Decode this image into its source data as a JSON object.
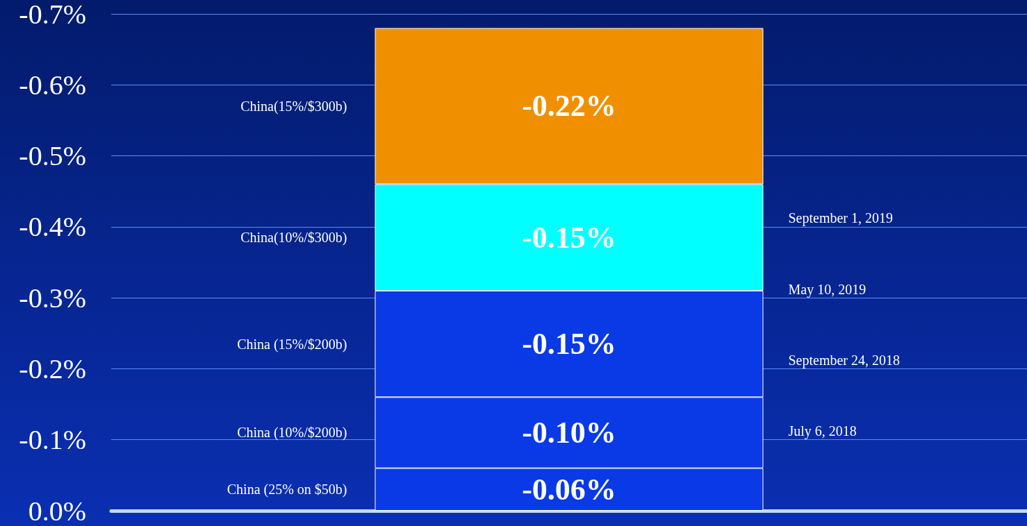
{
  "chart_data": {
    "type": "bar",
    "stacked": true,
    "categories": [
      null
    ],
    "series": [
      {
        "name": "China (25% on $50b)",
        "color": "#0a3ae6",
        "values": [
          -0.06
        ],
        "value_labels": [
          "-0.06%"
        ]
      },
      {
        "name": "China (10%/$200b)",
        "color": "#0a3ae6",
        "values": [
          -0.1
        ],
        "value_labels": [
          "-0.10%"
        ]
      },
      {
        "name": "China (15%/$200b)",
        "color": "#0a3ae6",
        "values": [
          -0.15
        ],
        "value_labels": [
          "-0.15%"
        ]
      },
      {
        "name": "China(10%/$300b)",
        "color": "#00ffff",
        "values": [
          -0.15
        ],
        "value_labels": [
          "-0.15%"
        ]
      },
      {
        "name": "China(15%/$300b)",
        "color": "#f09000",
        "values": [
          -0.22
        ],
        "value_labels": [
          "-0.22%"
        ]
      }
    ],
    "ylim": [
      0,
      -0.7
    ],
    "yticks": [
      {
        "value": 0,
        "label": "0.0%"
      },
      {
        "value": -0.1,
        "label": "-0.1%"
      },
      {
        "value": -0.2,
        "label": "-0.2%"
      },
      {
        "value": -0.3,
        "label": "-0.3%"
      },
      {
        "value": -0.4,
        "label": "-0.4%"
      },
      {
        "value": -0.5,
        "label": "-0.5%"
      },
      {
        "value": -0.6,
        "label": "-0.6%"
      },
      {
        "value": -0.7,
        "label": "-0.7%"
      }
    ],
    "grid": "y",
    "legend": false,
    "annotations": [
      "July 6, 2018",
      "September 24, 2018",
      "May 10, 2019",
      "September 1, 2019"
    ]
  }
}
